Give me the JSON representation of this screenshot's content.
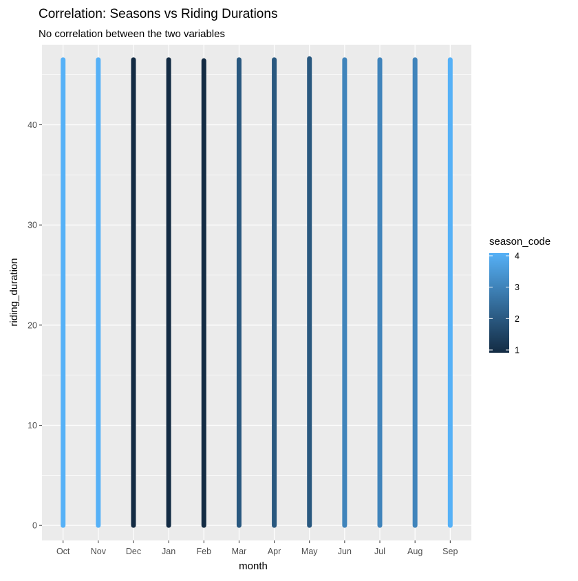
{
  "chart_data": {
    "type": "scatter",
    "title": "Correlation: Seasons vs Riding Durations",
    "subtitle": "No correlation between the two variables",
    "xlabel": "month",
    "ylabel": "riding_duration",
    "categories": [
      "Oct",
      "Nov",
      "Dec",
      "Jan",
      "Feb",
      "Mar",
      "Apr",
      "May",
      "Jun",
      "Jul",
      "Aug",
      "Sep"
    ],
    "season_code": [
      4,
      4,
      1,
      1,
      1,
      2,
      2,
      2,
      3,
      3,
      3,
      4
    ],
    "y_min": [
      0,
      0,
      0,
      0,
      0,
      0,
      0,
      0,
      0,
      0,
      0,
      0
    ],
    "y_max": [
      46.5,
      46.5,
      46.5,
      46.5,
      46.4,
      46.5,
      46.5,
      46.6,
      46.5,
      46.5,
      46.5,
      46.5
    ],
    "ylim": [
      -1.5,
      48
    ],
    "yticks": [
      0,
      10,
      20,
      30,
      40
    ],
    "legend": {
      "title": "season_code",
      "position": "right",
      "ticks": [
        1,
        2,
        3,
        4
      ],
      "range": [
        1,
        4
      ],
      "color_low": "#132B43",
      "color_high": "#56B1F7"
    },
    "panel_background": "#EBEBEB",
    "grid": true
  }
}
